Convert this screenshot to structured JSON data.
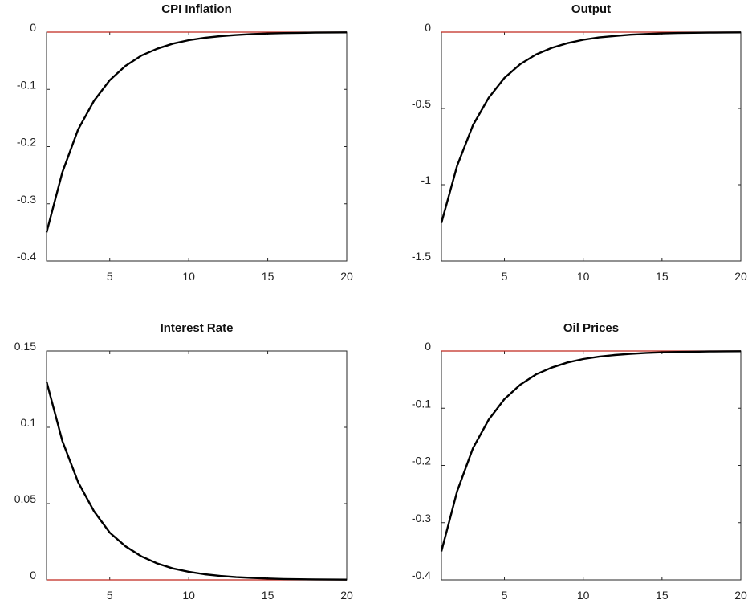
{
  "style": {
    "line_color": "#000000",
    "zero_line_color": "#c0281e",
    "axis_color": "#262626"
  },
  "chart_data": [
    {
      "type": "line",
      "title": "CPI Inflation",
      "xlim": [
        1,
        20
      ],
      "ylim": [
        -0.4,
        0
      ],
      "xticks": [
        5,
        10,
        15,
        20
      ],
      "yticks": [
        0,
        -0.1,
        -0.2,
        -0.3,
        -0.4
      ],
      "ytick_labels": [
        "0",
        "-0.1",
        "-0.2",
        "-0.3",
        "-0.4"
      ],
      "zero_line": 0,
      "x": [
        1,
        2,
        3,
        4,
        5,
        6,
        7,
        8,
        9,
        10,
        11,
        12,
        13,
        14,
        15,
        16,
        17,
        18,
        19,
        20
      ],
      "series": [
        {
          "values": [
            -0.35,
            -0.245,
            -0.17,
            -0.12,
            -0.084,
            -0.059,
            -0.041,
            -0.029,
            -0.02,
            -0.014,
            -0.01,
            -0.007,
            -0.005,
            -0.0034,
            -0.0024,
            -0.0017,
            -0.0012,
            -0.0008,
            -0.0006,
            -0.0004
          ]
        }
      ]
    },
    {
      "type": "line",
      "title": "Output",
      "xlim": [
        1,
        20
      ],
      "ylim": [
        -1.5,
        0
      ],
      "xticks": [
        5,
        10,
        15,
        20
      ],
      "yticks": [
        0,
        -0.5,
        -1,
        -1.5
      ],
      "ytick_labels": [
        "0",
        "-0.5",
        "-1",
        "-1.5"
      ],
      "zero_line": 0,
      "x": [
        1,
        2,
        3,
        4,
        5,
        6,
        7,
        8,
        9,
        10,
        11,
        12,
        13,
        14,
        15,
        16,
        17,
        18,
        19,
        20
      ],
      "series": [
        {
          "values": [
            -1.25,
            -0.875,
            -0.61,
            -0.43,
            -0.3,
            -0.21,
            -0.147,
            -0.103,
            -0.072,
            -0.05,
            -0.035,
            -0.025,
            -0.017,
            -0.012,
            -0.0085,
            -0.006,
            -0.004,
            -0.003,
            -0.002,
            -0.0014
          ]
        }
      ]
    },
    {
      "type": "line",
      "title": "Interest Rate",
      "xlim": [
        1,
        20
      ],
      "ylim": [
        0,
        0.15
      ],
      "xticks": [
        5,
        10,
        15,
        20
      ],
      "yticks": [
        0,
        0.05,
        0.1,
        0.15
      ],
      "ytick_labels": [
        "0",
        "0.05",
        "0.1",
        "0.15"
      ],
      "zero_line": 0,
      "x": [
        1,
        2,
        3,
        4,
        5,
        6,
        7,
        8,
        9,
        10,
        11,
        12,
        13,
        14,
        15,
        16,
        17,
        18,
        19,
        20
      ],
      "series": [
        {
          "values": [
            0.13,
            0.091,
            0.064,
            0.045,
            0.031,
            0.022,
            0.0154,
            0.0108,
            0.0075,
            0.0053,
            0.0037,
            0.0026,
            0.0018,
            0.0013,
            0.0009,
            0.0006,
            0.00044,
            0.0003,
            0.0002,
            0.00015
          ]
        }
      ]
    },
    {
      "type": "line",
      "title": "Oil Prices",
      "xlim": [
        1,
        20
      ],
      "ylim": [
        -0.4,
        0
      ],
      "xticks": [
        5,
        10,
        15,
        20
      ],
      "yticks": [
        0,
        -0.1,
        -0.2,
        -0.3,
        -0.4
      ],
      "ytick_labels": [
        "0",
        "-0.1",
        "-0.2",
        "-0.3",
        "-0.4"
      ],
      "zero_line": 0,
      "x": [
        1,
        2,
        3,
        4,
        5,
        6,
        7,
        8,
        9,
        10,
        11,
        12,
        13,
        14,
        15,
        16,
        17,
        18,
        19,
        20
      ],
      "series": [
        {
          "values": [
            -0.35,
            -0.245,
            -0.17,
            -0.12,
            -0.084,
            -0.059,
            -0.041,
            -0.029,
            -0.02,
            -0.014,
            -0.01,
            -0.007,
            -0.005,
            -0.0034,
            -0.0024,
            -0.0017,
            -0.0012,
            -0.0008,
            -0.0006,
            -0.0004
          ]
        }
      ]
    }
  ]
}
